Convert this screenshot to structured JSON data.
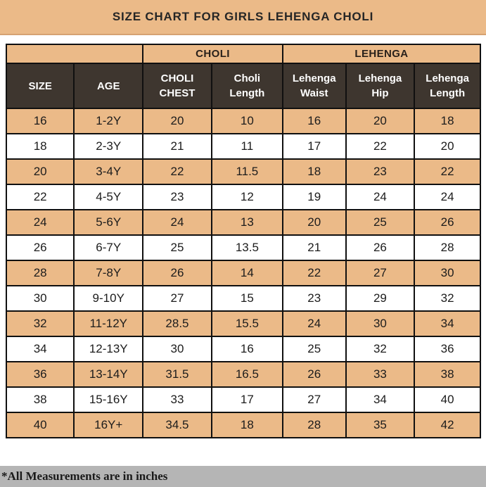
{
  "banner": {
    "title": "SIZE CHART FOR GIRLS LEHENGA CHOLI"
  },
  "chart_data": {
    "type": "table",
    "title": "SIZE CHART FOR GIRLS LEHENGA CHOLI",
    "group_headers": [
      {
        "label": "",
        "span": 2
      },
      {
        "label": "CHOLI",
        "span": 2
      },
      {
        "label": "LEHENGA",
        "span": 3
      }
    ],
    "columns": [
      "SIZE",
      "AGE",
      "CHOLI CHEST",
      "Choli Length",
      "Lehenga Waist",
      "Lehenga Hip",
      "Lehenga Length"
    ],
    "rows": [
      [
        "16",
        "1-2Y",
        "20",
        "10",
        "16",
        "20",
        "18"
      ],
      [
        "18",
        "2-3Y",
        "21",
        "11",
        "17",
        "22",
        "20"
      ],
      [
        "20",
        "3-4Y",
        "22",
        "11.5",
        "18",
        "23",
        "22"
      ],
      [
        "22",
        "4-5Y",
        "23",
        "12",
        "19",
        "24",
        "24"
      ],
      [
        "24",
        "5-6Y",
        "24",
        "13",
        "20",
        "25",
        "26"
      ],
      [
        "26",
        "6-7Y",
        "25",
        "13.5",
        "21",
        "26",
        "28"
      ],
      [
        "28",
        "7-8Y",
        "26",
        "14",
        "22",
        "27",
        "30"
      ],
      [
        "30",
        "9-10Y",
        "27",
        "15",
        "23",
        "29",
        "32"
      ],
      [
        "32",
        "11-12Y",
        "28.5",
        "15.5",
        "24",
        "30",
        "34"
      ],
      [
        "34",
        "12-13Y",
        "30",
        "16",
        "25",
        "32",
        "36"
      ],
      [
        "36",
        "13-14Y",
        "31.5",
        "16.5",
        "26",
        "33",
        "38"
      ],
      [
        "38",
        "15-16Y",
        "33",
        "17",
        "27",
        "34",
        "40"
      ],
      [
        "40",
        "16Y+",
        "34.5",
        "18",
        "28",
        "35",
        "42"
      ]
    ],
    "row_striping": "odd rows tan, even rows white",
    "note": "*All Measurements are in inches",
    "column_widths_pct": [
      14.3,
      14.5,
      14.5,
      15.0,
      13.3,
      14.5,
      13.9
    ]
  },
  "footer": {
    "note": "*All Measurements are in inches"
  },
  "colors": {
    "banner_bg": "#ebba88",
    "stripe_row_bg": "#ebba88",
    "header_dark_bg": "#3e362f",
    "header_dark_text": "#ffffff",
    "border": "#101010",
    "footer_bg": "#b5b5b5",
    "text": "#1c1c1c"
  }
}
